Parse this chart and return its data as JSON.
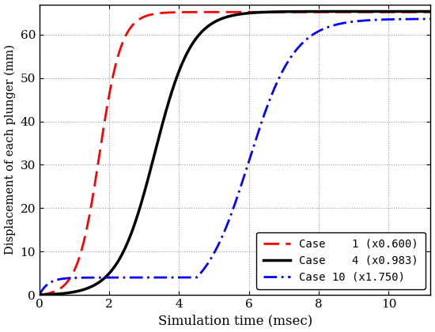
{
  "xlabel": "Simulation time (msec)",
  "ylabel": "Displacement of each plunger (mm)",
  "xlim": [
    0,
    11.2
  ],
  "ylim": [
    0,
    67
  ],
  "xticks": [
    0,
    2,
    4,
    6,
    8,
    10
  ],
  "yticks": [
    0,
    10,
    20,
    30,
    40,
    50,
    60
  ],
  "legend_entries": [
    "Case    1 (x0.600)",
    "Case    4 (x0.983)",
    "Case 10 (x1.750)"
  ],
  "curve1_color": "#FF0000",
  "curve2_color": "#000000",
  "curve3_color": "#0000FF",
  "max_displacement": 65.5,
  "case1_midpoint": 1.72,
  "case1_steepness": 3.2,
  "case4_midpoint": 3.3,
  "case4_steepness": 1.9,
  "case10_midpoint": 6.0,
  "case10_steepness": 1.55,
  "case10_plateau_val": 4.0,
  "case10_plateau_end": 4.5,
  "figsize": [
    5.5,
    4.2
  ],
  "dpi": 100
}
